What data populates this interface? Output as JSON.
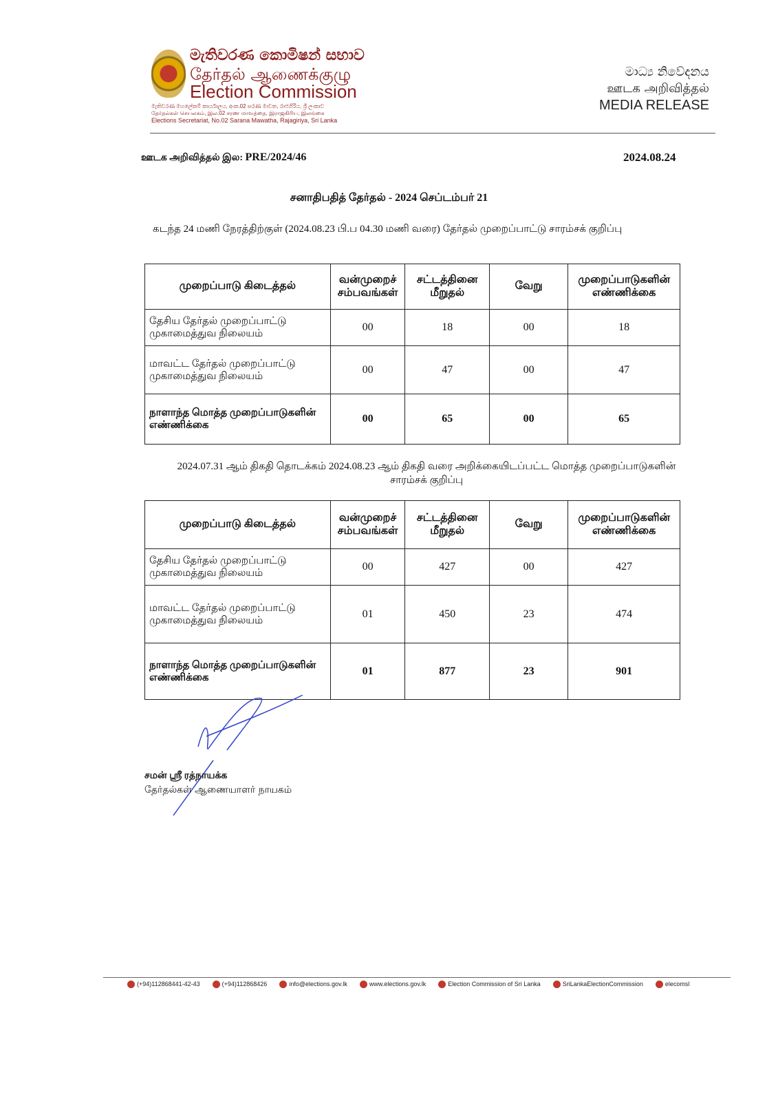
{
  "header": {
    "org_si": "මැතිවරණ කොමිෂන් සභාව",
    "org_ta": "தேர்தல் ஆணைக்குழு",
    "org_en": "Election Commission",
    "addr_si": "මැතිවරණ මහලේකම් කාර්යාලය, අංක.02 සරණ මාවත, රාජගිරිය, ශ්‍රී ලංකාව",
    "addr_ta": "தேர்தல்கள் செயலகம், இல.02 சரண மாவத்தை, இராஜகிரிய, இலங்கை",
    "addr_en": "Elections Secretariat, No.02 Sarana Mawatha, Rajagiriya, Sri Lanka",
    "mr_si": "මාධ්‍ය නිවේදනය",
    "mr_ta": "ஊடக அறிவித்தல்",
    "mr_en": "MEDIA RELEASE"
  },
  "ref": {
    "label": "ஊடக அறிவித்தல் இல:",
    "number": "PRE/2024/46",
    "date": "2024.08.24"
  },
  "title": "சனாதிபதித் தேர்தல் - 2024 செப்டம்பர் 21",
  "section1": "கடந்த 24 மணி நேரத்திற்குள் (2024.08.23 பி.ப 04.30 மணி வரை) தேர்தல் முறைப்பாட்டு சாரம்சக் குறிப்பு",
  "section2": "2024.07.31 ஆம் திகதி தொடக்கம் 2024.08.23 ஆம் திகதி வரை அறிக்கையிடப்பட்ட மொத்த முறைப்பாடுகளின் சாரம்சக் குறிப்பு",
  "columns": [
    "முறைப்பாடு கிடைத்தல்",
    "வன்முறைச் சம்பவங்கள்",
    "சட்டத்தினை மீறுதல்",
    "வேறு",
    "முறைப்பாடுகளின் எண்ணிக்கை"
  ],
  "table1": [
    {
      "label": "தேசிய தேர்தல் முறைப்பாட்டு முகாமைத்துவ நிலையம்",
      "v": [
        "00",
        "18",
        "00",
        "18"
      ]
    },
    {
      "label": "மாவட்ட தேர்தல் முறைப்பாட்டு முகாமைத்துவ நிலையம்",
      "v": [
        "00",
        "47",
        "00",
        "47"
      ]
    },
    {
      "label": "நாளாந்த மொத்த முறைப்பாடுகளின் எண்ணிக்கை",
      "v": [
        "00",
        "65",
        "00",
        "65"
      ],
      "total": true
    }
  ],
  "table2": [
    {
      "label": "தேசிய தேர்தல் முறைப்பாட்டு முகாமைத்துவ நிலையம்",
      "v": [
        "00",
        "427",
        "00",
        "427"
      ]
    },
    {
      "label": "மாவட்ட தேர்தல் முறைப்பாட்டு முகாமைத்துவ நிலையம்",
      "v": [
        "01",
        "450",
        "23",
        "474"
      ]
    },
    {
      "label": "நாளாந்த மொத்த முறைப்பாடுகளின் எண்ணிக்கை",
      "v": [
        "01",
        "877",
        "23",
        "901"
      ],
      "total": true
    }
  ],
  "signatory": {
    "name": "சமன் ஸ்ரீ ரத்நாயக்க",
    "title": "தேர்தல்கள் ஆணையாளர் நாயகம்"
  },
  "footer": [
    "(+94)112868441-42-43",
    "(+94)112868426",
    "info@elections.gov.lk",
    "www.elections.gov.lk",
    "Election Commission of Sri Lanka",
    "SriLankaElectionCommission",
    "elecomsl"
  ],
  "colors": {
    "brand": "#8b1a1a",
    "signature": "#3344cc"
  }
}
